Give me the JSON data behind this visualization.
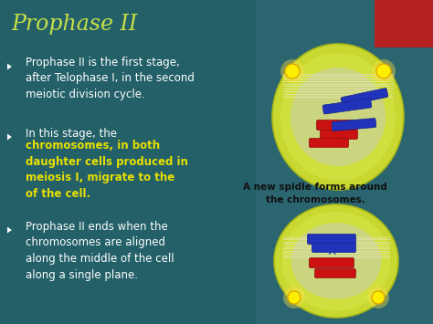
{
  "title": "Prophase II",
  "title_color": "#c8e04a",
  "bg_color": "#2a6570",
  "bullet_color": "#ffffff",
  "highlight_color": "#e8e000",
  "caption_color": "#111111",
  "red_corner": "#b52020",
  "caption": "A new spidle forms around\nthe chromosomes.",
  "cell_outer": "#c8d830",
  "cell_border": "#a8b818",
  "cell_inner": "#d4e040",
  "cyto_color": "#c0c8a8",
  "spindle_color": "#e8e8c0",
  "pole_color": "#ffee00",
  "pole_edge": "#ddaa00",
  "chrom_red": "#cc1111",
  "chrom_red_edge": "#881111",
  "chrom_blue": "#2233bb",
  "chrom_blue_edge": "#112288",
  "bullet1": "Prophase II is the first stage,\nafter Telophase I, in the second\nmeiotic division cycle.",
  "bullet2_normal": "In this stage, the",
  "bullet2_bold": "chromosomes, in both\ndaughter cells produced in\nmeiosis I, migrate to the\nof the cell.",
  "bullet3": "Prophase II ends when the\nchromosomes are aligned\nalong the middle of the cell\nalong a single plane."
}
